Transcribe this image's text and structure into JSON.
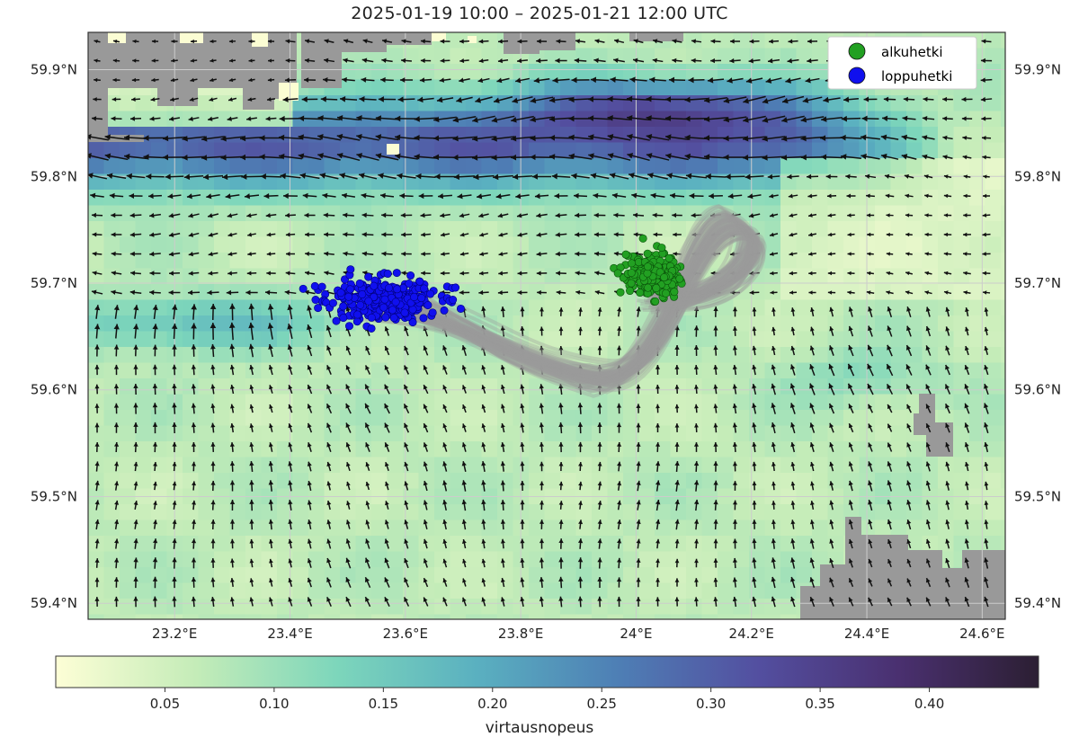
{
  "title": "2025-01-19 10:00  –  2025-01-21 12:00 UTC",
  "map": {
    "lon_range": [
      23.05,
      24.64
    ],
    "lat_range": [
      59.385,
      59.935
    ],
    "lon_ticks": [
      "23.2°E",
      "23.4°E",
      "23.6°E",
      "23.8°E",
      "24°E",
      "24.2°E",
      "24.4°E",
      "24.6°E"
    ],
    "lon_tick_values": [
      23.2,
      23.4,
      23.6,
      23.8,
      24.0,
      24.2,
      24.4,
      24.6
    ],
    "lat_ticks": [
      "59.4°N",
      "59.5°N",
      "59.6°N",
      "59.7°N",
      "59.8°N",
      "59.9°N"
    ],
    "lat_tick_values": [
      59.4,
      59.5,
      59.6,
      59.7,
      59.8,
      59.9
    ],
    "grid": true,
    "land_color": "#999999",
    "trajectory_color": "#9a9a9a",
    "start_cloud_center": [
      24.03,
      59.707
    ],
    "end_cloud_center": [
      23.56,
      59.685
    ]
  },
  "legend": {
    "position": "top-right",
    "items": [
      {
        "label": "alkuhetki",
        "color": "#22a022"
      },
      {
        "label": "loppuhetki",
        "color": "#1010ee"
      }
    ]
  },
  "colorbar": {
    "label": "virtausnopeus",
    "min": 0.0,
    "max": 0.45,
    "ticks": [
      "0.05",
      "0.10",
      "0.15",
      "0.20",
      "0.25",
      "0.30",
      "0.35",
      "0.40"
    ],
    "tick_values": [
      0.05,
      0.1,
      0.15,
      0.2,
      0.25,
      0.3,
      0.35,
      0.4
    ],
    "colors": [
      "#fdfed6",
      "#c4ecb8",
      "#7dd6bb",
      "#5ab0c0",
      "#4e7fb5",
      "#534fa0",
      "#4a3070",
      "#2c1f33"
    ]
  }
}
